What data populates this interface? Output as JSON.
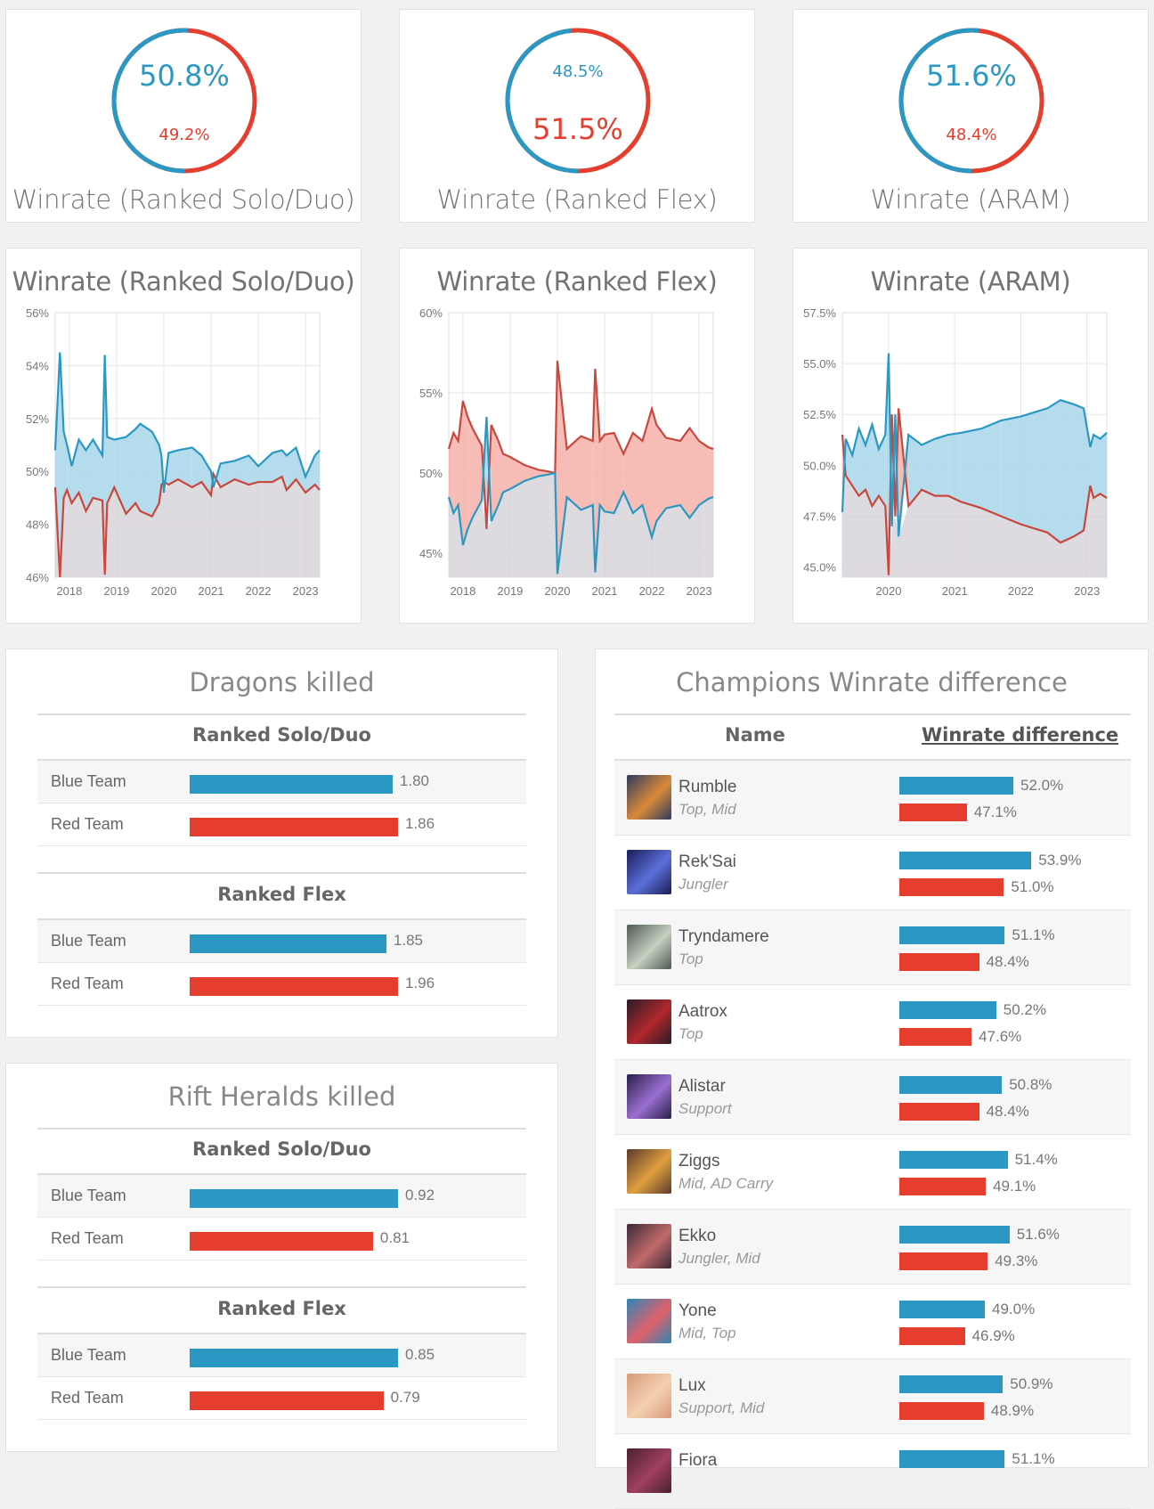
{
  "colors": {
    "blue": "#2a98c3",
    "red": "#e53e2e",
    "blue_fill": "#a8d6ea",
    "red_fill": "#f4b0a8",
    "grey_fill": "#d3cfd6"
  },
  "donuts": [
    {
      "label": "Winrate (Ranked Solo/Duo)",
      "blue": "50.8%",
      "red": "49.2%",
      "blue_fraction": 0.508,
      "big": "blue"
    },
    {
      "label": "Winrate (Ranked Flex)",
      "blue": "48.5%",
      "red": "51.5%",
      "blue_fraction": 0.485,
      "big": "red"
    },
    {
      "label": "Winrate (ARAM)",
      "blue": "51.6%",
      "red": "48.4%",
      "blue_fraction": 0.516,
      "big": "blue"
    }
  ],
  "chart_data": [
    {
      "type": "line",
      "title": "Winrate (Ranked Solo/Duo)",
      "ylim": [
        46,
        56
      ],
      "yticks": [
        "56%",
        "54%",
        "52%",
        "50%",
        "48%",
        "46%"
      ],
      "xlim": [
        2017.7,
        2023.3
      ],
      "xticks": [
        "2018",
        "2019",
        "2020",
        "2021",
        "2022",
        "2023"
      ],
      "grid": true,
      "series": [
        {
          "x": [
            2017.7,
            2017.8,
            2017.88,
            2017.95,
            2018.05,
            2018.2,
            2018.35,
            2018.5,
            2018.7,
            2018.75,
            2018.8,
            2018.95,
            2019.2,
            2019.4,
            2019.5,
            2019.75,
            2019.9,
            2019.95,
            2020.0,
            2020.1,
            2020.3,
            2020.6,
            2020.8,
            2021.0,
            2021.05,
            2021.2,
            2021.5,
            2021.8,
            2022.0,
            2022.3,
            2022.5,
            2022.6,
            2022.8,
            2023.0,
            2023.2,
            2023.3
          ],
          "y": [
            50.8,
            54.5,
            51.5,
            51.0,
            50.2,
            51.2,
            50.8,
            51.2,
            50.6,
            54.4,
            51.3,
            51.2,
            51.3,
            51.6,
            51.8,
            51.5,
            51.0,
            50.6,
            49.2,
            50.7,
            50.8,
            50.9,
            50.6,
            50.0,
            49.4,
            50.3,
            50.4,
            50.6,
            50.2,
            50.7,
            50.8,
            50.6,
            50.9,
            49.8,
            50.6,
            50.8
          ]
        },
        {
          "x": [
            2017.7,
            2017.8,
            2017.88,
            2017.95,
            2018.05,
            2018.2,
            2018.35,
            2018.5,
            2018.7,
            2018.75,
            2018.8,
            2018.95,
            2019.2,
            2019.4,
            2019.5,
            2019.75,
            2019.9,
            2019.95,
            2020.0,
            2020.1,
            2020.3,
            2020.6,
            2020.8,
            2021.0,
            2021.05,
            2021.2,
            2021.5,
            2021.8,
            2022.0,
            2022.3,
            2022.5,
            2022.6,
            2022.8,
            2023.0,
            2023.2,
            2023.3
          ],
          "y": [
            49.4,
            46.0,
            49.0,
            49.3,
            48.8,
            49.2,
            48.5,
            49.0,
            48.9,
            46.1,
            48.8,
            49.4,
            48.4,
            48.8,
            48.5,
            48.3,
            48.8,
            49.5,
            49.6,
            49.5,
            49.7,
            49.4,
            49.6,
            49.1,
            49.9,
            49.4,
            49.7,
            49.5,
            49.6,
            49.6,
            49.8,
            49.3,
            49.7,
            49.2,
            49.5,
            49.3
          ]
        }
      ]
    },
    {
      "type": "line",
      "title": "Winrate (Ranked Flex)",
      "ylim": [
        43.5,
        60
      ],
      "yticks": [
        "60%",
        "55%",
        "50%",
        "45%"
      ],
      "xlim": [
        2017.7,
        2023.3
      ],
      "xticks": [
        "2018",
        "2019",
        "2020",
        "2021",
        "2022",
        "2023"
      ],
      "grid": true,
      "series": [
        {
          "x": [
            2017.7,
            2017.8,
            2017.9,
            2018.0,
            2018.1,
            2018.2,
            2018.4,
            2018.5,
            2018.6,
            2018.75,
            2018.85,
            2019.0,
            2019.3,
            2019.6,
            2019.8,
            2019.95,
            2020.0,
            2020.2,
            2020.5,
            2020.75,
            2020.8,
            2020.9,
            2021.0,
            2021.2,
            2021.4,
            2021.6,
            2021.8,
            2022.0,
            2022.1,
            2022.3,
            2022.6,
            2022.8,
            2023.0,
            2023.2,
            2023.3
          ],
          "y": [
            48.5,
            47.5,
            48.0,
            45.5,
            46.5,
            47.2,
            48.3,
            53.5,
            47.0,
            48.0,
            48.8,
            49.0,
            49.5,
            49.8,
            49.9,
            50.0,
            43.7,
            48.5,
            47.7,
            48.0,
            43.8,
            48.0,
            47.6,
            47.5,
            48.8,
            47.5,
            48.0,
            46.0,
            47.0,
            47.8,
            48.0,
            47.2,
            48.0,
            48.4,
            48.5
          ]
        },
        {
          "x": [
            2017.7,
            2017.8,
            2017.9,
            2018.0,
            2018.1,
            2018.2,
            2018.4,
            2018.5,
            2018.6,
            2018.75,
            2018.85,
            2019.0,
            2019.3,
            2019.6,
            2019.8,
            2019.95,
            2020.0,
            2020.2,
            2020.5,
            2020.75,
            2020.8,
            2020.9,
            2021.0,
            2021.2,
            2021.4,
            2021.6,
            2021.8,
            2022.0,
            2022.1,
            2022.3,
            2022.6,
            2022.8,
            2023.0,
            2023.2,
            2023.3
          ],
          "y": [
            51.5,
            52.5,
            52.0,
            54.5,
            53.5,
            52.8,
            51.7,
            46.5,
            53.0,
            52.0,
            51.2,
            51.0,
            50.5,
            50.2,
            50.1,
            50.0,
            57.0,
            51.5,
            52.3,
            52.0,
            56.5,
            52.0,
            52.4,
            52.5,
            51.2,
            52.5,
            52.0,
            54.0,
            53.0,
            52.2,
            52.0,
            52.8,
            52.0,
            51.6,
            51.5
          ]
        }
      ]
    },
    {
      "type": "line",
      "title": "Winrate (ARAM)",
      "ylim": [
        44.5,
        57.5
      ],
      "yticks": [
        "57.5%",
        "55.0%",
        "52.5%",
        "50.0%",
        "47.5%",
        "45.0%"
      ],
      "xlim": [
        2019.3,
        2023.3
      ],
      "xticks": [
        "2020",
        "2021",
        "2022",
        "2023"
      ],
      "grid": true,
      "series": [
        {
          "x": [
            2019.3,
            2019.35,
            2019.45,
            2019.55,
            2019.65,
            2019.75,
            2019.85,
            2019.95,
            2020.0,
            2020.05,
            2020.1,
            2020.15,
            2020.3,
            2020.5,
            2020.7,
            2020.9,
            2021.1,
            2021.4,
            2021.7,
            2022.0,
            2022.2,
            2022.4,
            2022.6,
            2022.8,
            2022.95,
            2023.05,
            2023.1,
            2023.2,
            2023.3
          ],
          "y": [
            47.7,
            51.3,
            50.5,
            51.8,
            51.0,
            52.0,
            50.8,
            51.5,
            55.5,
            47.0,
            52.5,
            46.5,
            51.5,
            51.0,
            51.3,
            51.5,
            51.6,
            51.8,
            52.2,
            52.4,
            52.6,
            52.8,
            53.2,
            53.0,
            52.8,
            50.9,
            51.5,
            51.3,
            51.6
          ]
        },
        {
          "x": [
            2019.3,
            2019.35,
            2019.45,
            2019.55,
            2019.65,
            2019.75,
            2019.85,
            2019.95,
            2020.0,
            2020.05,
            2020.1,
            2020.15,
            2020.3,
            2020.5,
            2020.7,
            2020.9,
            2021.1,
            2021.4,
            2021.7,
            2022.0,
            2022.2,
            2022.4,
            2022.6,
            2022.8,
            2022.95,
            2023.05,
            2023.1,
            2023.2,
            2023.3
          ],
          "y": [
            51.5,
            49.5,
            49.0,
            48.5,
            48.8,
            48.0,
            48.5,
            48.0,
            44.6,
            52.5,
            47.5,
            52.8,
            48.0,
            48.8,
            48.5,
            48.5,
            48.2,
            47.9,
            47.5,
            47.1,
            46.9,
            46.7,
            46.2,
            46.5,
            46.8,
            49.0,
            48.4,
            48.6,
            48.4
          ]
        }
      ]
    }
  ],
  "dragons": {
    "title": "Dragons killed",
    "groups": [
      {
        "name": "Ranked Solo/Duo",
        "rows": [
          {
            "label": "Blue Team",
            "value": "1.80",
            "fraction": 0.974
          },
          {
            "label": "Red Team",
            "value": "1.86",
            "fraction": 1.0
          }
        ]
      },
      {
        "name": "Ranked Flex",
        "rows": [
          {
            "label": "Blue Team",
            "value": "1.85",
            "fraction": 0.944
          },
          {
            "label": "Red Team",
            "value": "1.96",
            "fraction": 1.0
          }
        ]
      }
    ]
  },
  "heralds": {
    "title": "Rift Heralds killed",
    "groups": [
      {
        "name": "Ranked Solo/Duo",
        "rows": [
          {
            "label": "Blue Team",
            "value": "0.92",
            "fraction": 1.0
          },
          {
            "label": "Red Team",
            "value": "0.81",
            "fraction": 0.88
          }
        ]
      },
      {
        "name": "Ranked Flex",
        "rows": [
          {
            "label": "Blue Team",
            "value": "0.85",
            "fraction": 1.0
          },
          {
            "label": "Red Team",
            "value": "0.79",
            "fraction": 0.93
          }
        ]
      }
    ]
  },
  "champions": {
    "title": "Champions Winrate difference",
    "col_name": "Name",
    "col_winrate": "Winrate difference",
    "rows": [
      {
        "name": "Rumble",
        "role": "Top, Mid",
        "blue": "52.0%",
        "red": "47.1%",
        "blue_val": 52.0,
        "red_val": 47.1,
        "avatar": [
          "#2d3b5c",
          "#d98a3a"
        ]
      },
      {
        "name": "Rek'Sai",
        "role": "Jungler",
        "blue": "53.9%",
        "red": "51.0%",
        "blue_val": 53.9,
        "red_val": 51.0,
        "avatar": [
          "#1b1d5a",
          "#5b6fd8"
        ]
      },
      {
        "name": "Tryndamere",
        "role": "Top",
        "blue": "51.1%",
        "red": "48.4%",
        "blue_val": 51.1,
        "red_val": 48.4,
        "avatar": [
          "#4c5a52",
          "#c7d0c0"
        ]
      },
      {
        "name": "Aatrox",
        "role": "Top",
        "blue": "50.2%",
        "red": "47.6%",
        "blue_val": 50.2,
        "red_val": 47.6,
        "avatar": [
          "#2a1b28",
          "#b0282c"
        ]
      },
      {
        "name": "Alistar",
        "role": "Support",
        "blue": "50.8%",
        "red": "48.4%",
        "blue_val": 50.8,
        "red_val": 48.4,
        "avatar": [
          "#2a1f4a",
          "#9a6fd0"
        ]
      },
      {
        "name": "Ziggs",
        "role": "Mid, AD Carry",
        "blue": "51.4%",
        "red": "49.1%",
        "blue_val": 51.4,
        "red_val": 49.1,
        "avatar": [
          "#5a3a2a",
          "#e0a040"
        ]
      },
      {
        "name": "Ekko",
        "role": "Jungler, Mid",
        "blue": "51.6%",
        "red": "49.3%",
        "blue_val": 51.6,
        "red_val": 49.3,
        "avatar": [
          "#3a2a38",
          "#c06a6a"
        ]
      },
      {
        "name": "Yone",
        "role": "Mid, Top",
        "blue": "49.0%",
        "red": "46.9%",
        "blue_val": 49.0,
        "red_val": 46.9,
        "avatar": [
          "#2a88b8",
          "#e0606a"
        ]
      },
      {
        "name": "Lux",
        "role": "Support, Mid",
        "blue": "50.9%",
        "red": "48.9%",
        "blue_val": 50.9,
        "red_val": 48.9,
        "avatar": [
          "#d89a7a",
          "#f4d0b0"
        ]
      },
      {
        "name": "Fiora",
        "role": "",
        "blue": "51.1%",
        "red": "",
        "blue_val": 51.1,
        "red_val": 0,
        "avatar": [
          "#4a2030",
          "#a04060"
        ]
      }
    ]
  }
}
